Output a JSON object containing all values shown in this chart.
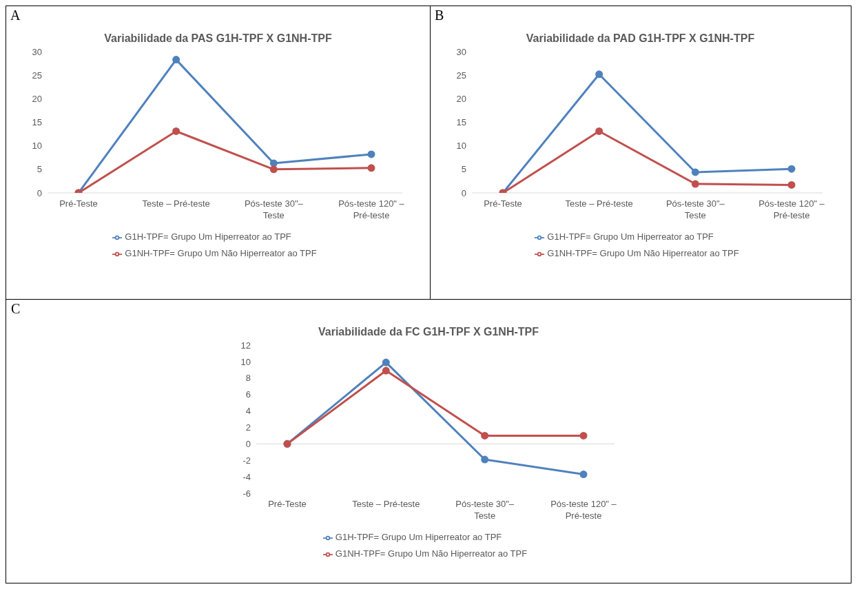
{
  "chart_data": [
    {
      "type": "line",
      "title": "Variabilidade da PAS G1H-TPF X G1NH-TPF",
      "annotations": [
        "A"
      ],
      "categories": [
        "Pré-Teste",
        "Teste – Pré-teste",
        "Pós-teste 30\"– Teste",
        "Pós-teste 120\" – Pré-teste"
      ],
      "series": [
        {
          "name": "G1H-TPF= Grupo Um Hiperreator ao TPF",
          "color": "#4f81bd",
          "values": [
            0,
            28.3,
            6.3,
            8.2
          ]
        },
        {
          "name": "G1NH-TPF= Grupo Um Não Hiperreator ao TPF",
          "color": "#c0504d",
          "values": [
            0,
            13.1,
            5.0,
            5.3
          ]
        }
      ],
      "ylim": [
        0,
        30
      ],
      "yticks": [
        0,
        5,
        10,
        15,
        20,
        25,
        30
      ],
      "grid": false,
      "legend": "bottom",
      "marker": "circle",
      "line_style": "solid"
    },
    {
      "type": "line",
      "title": "Variabilidade da PAD G1H-TPF X G1NH-TPF",
      "annotations": [
        "B"
      ],
      "categories": [
        "Pré-Teste",
        "Teste – Pré-teste",
        "Pós-teste 30\"– Teste",
        "Pós-teste 120\" – Pré-teste"
      ],
      "series": [
        {
          "name": "G1H-TPF= Grupo Um Hiperreator ao TPF",
          "color": "#4f81bd",
          "values": [
            0,
            25.2,
            4.4,
            5.1
          ]
        },
        {
          "name": "G1NH-TPF= Grupo Um Não Hiperreator ao TPF",
          "color": "#c0504d",
          "values": [
            0,
            13.1,
            1.9,
            1.7
          ]
        }
      ],
      "ylim": [
        0,
        30
      ],
      "yticks": [
        0,
        5,
        10,
        15,
        20,
        25,
        30
      ],
      "grid": false,
      "legend": "bottom",
      "marker": "circle",
      "line_style": "solid"
    },
    {
      "type": "line",
      "title": "Variabilidade da FC G1H-TPF X G1NH-TPF",
      "annotations": [
        "C"
      ],
      "categories": [
        "Pré-Teste",
        "Teste – Pré-teste",
        "Pós-teste 30\"– Teste",
        "Pós-teste 120\" – Pré-teste"
      ],
      "series": [
        {
          "name": "G1H-TPF= Grupo Um Hiperreator ao TPF",
          "color": "#4f81bd",
          "values": [
            0,
            9.9,
            -1.9,
            -3.7
          ]
        },
        {
          "name": "G1NH-TPF= Grupo Um Não Hiperreator ao TPF",
          "color": "#c0504d",
          "values": [
            0,
            8.9,
            1.0,
            1.0
          ]
        }
      ],
      "ref_lines": [
        {
          "axis": "y",
          "value": 0,
          "color": "#d9d9d9"
        }
      ],
      "ylim": [
        -6,
        12
      ],
      "yticks": [
        -6,
        -4,
        -2,
        0,
        2,
        4,
        6,
        8,
        10,
        12
      ],
      "grid": false,
      "legend": "bottom",
      "marker": "circle",
      "line_style": "solid"
    }
  ]
}
